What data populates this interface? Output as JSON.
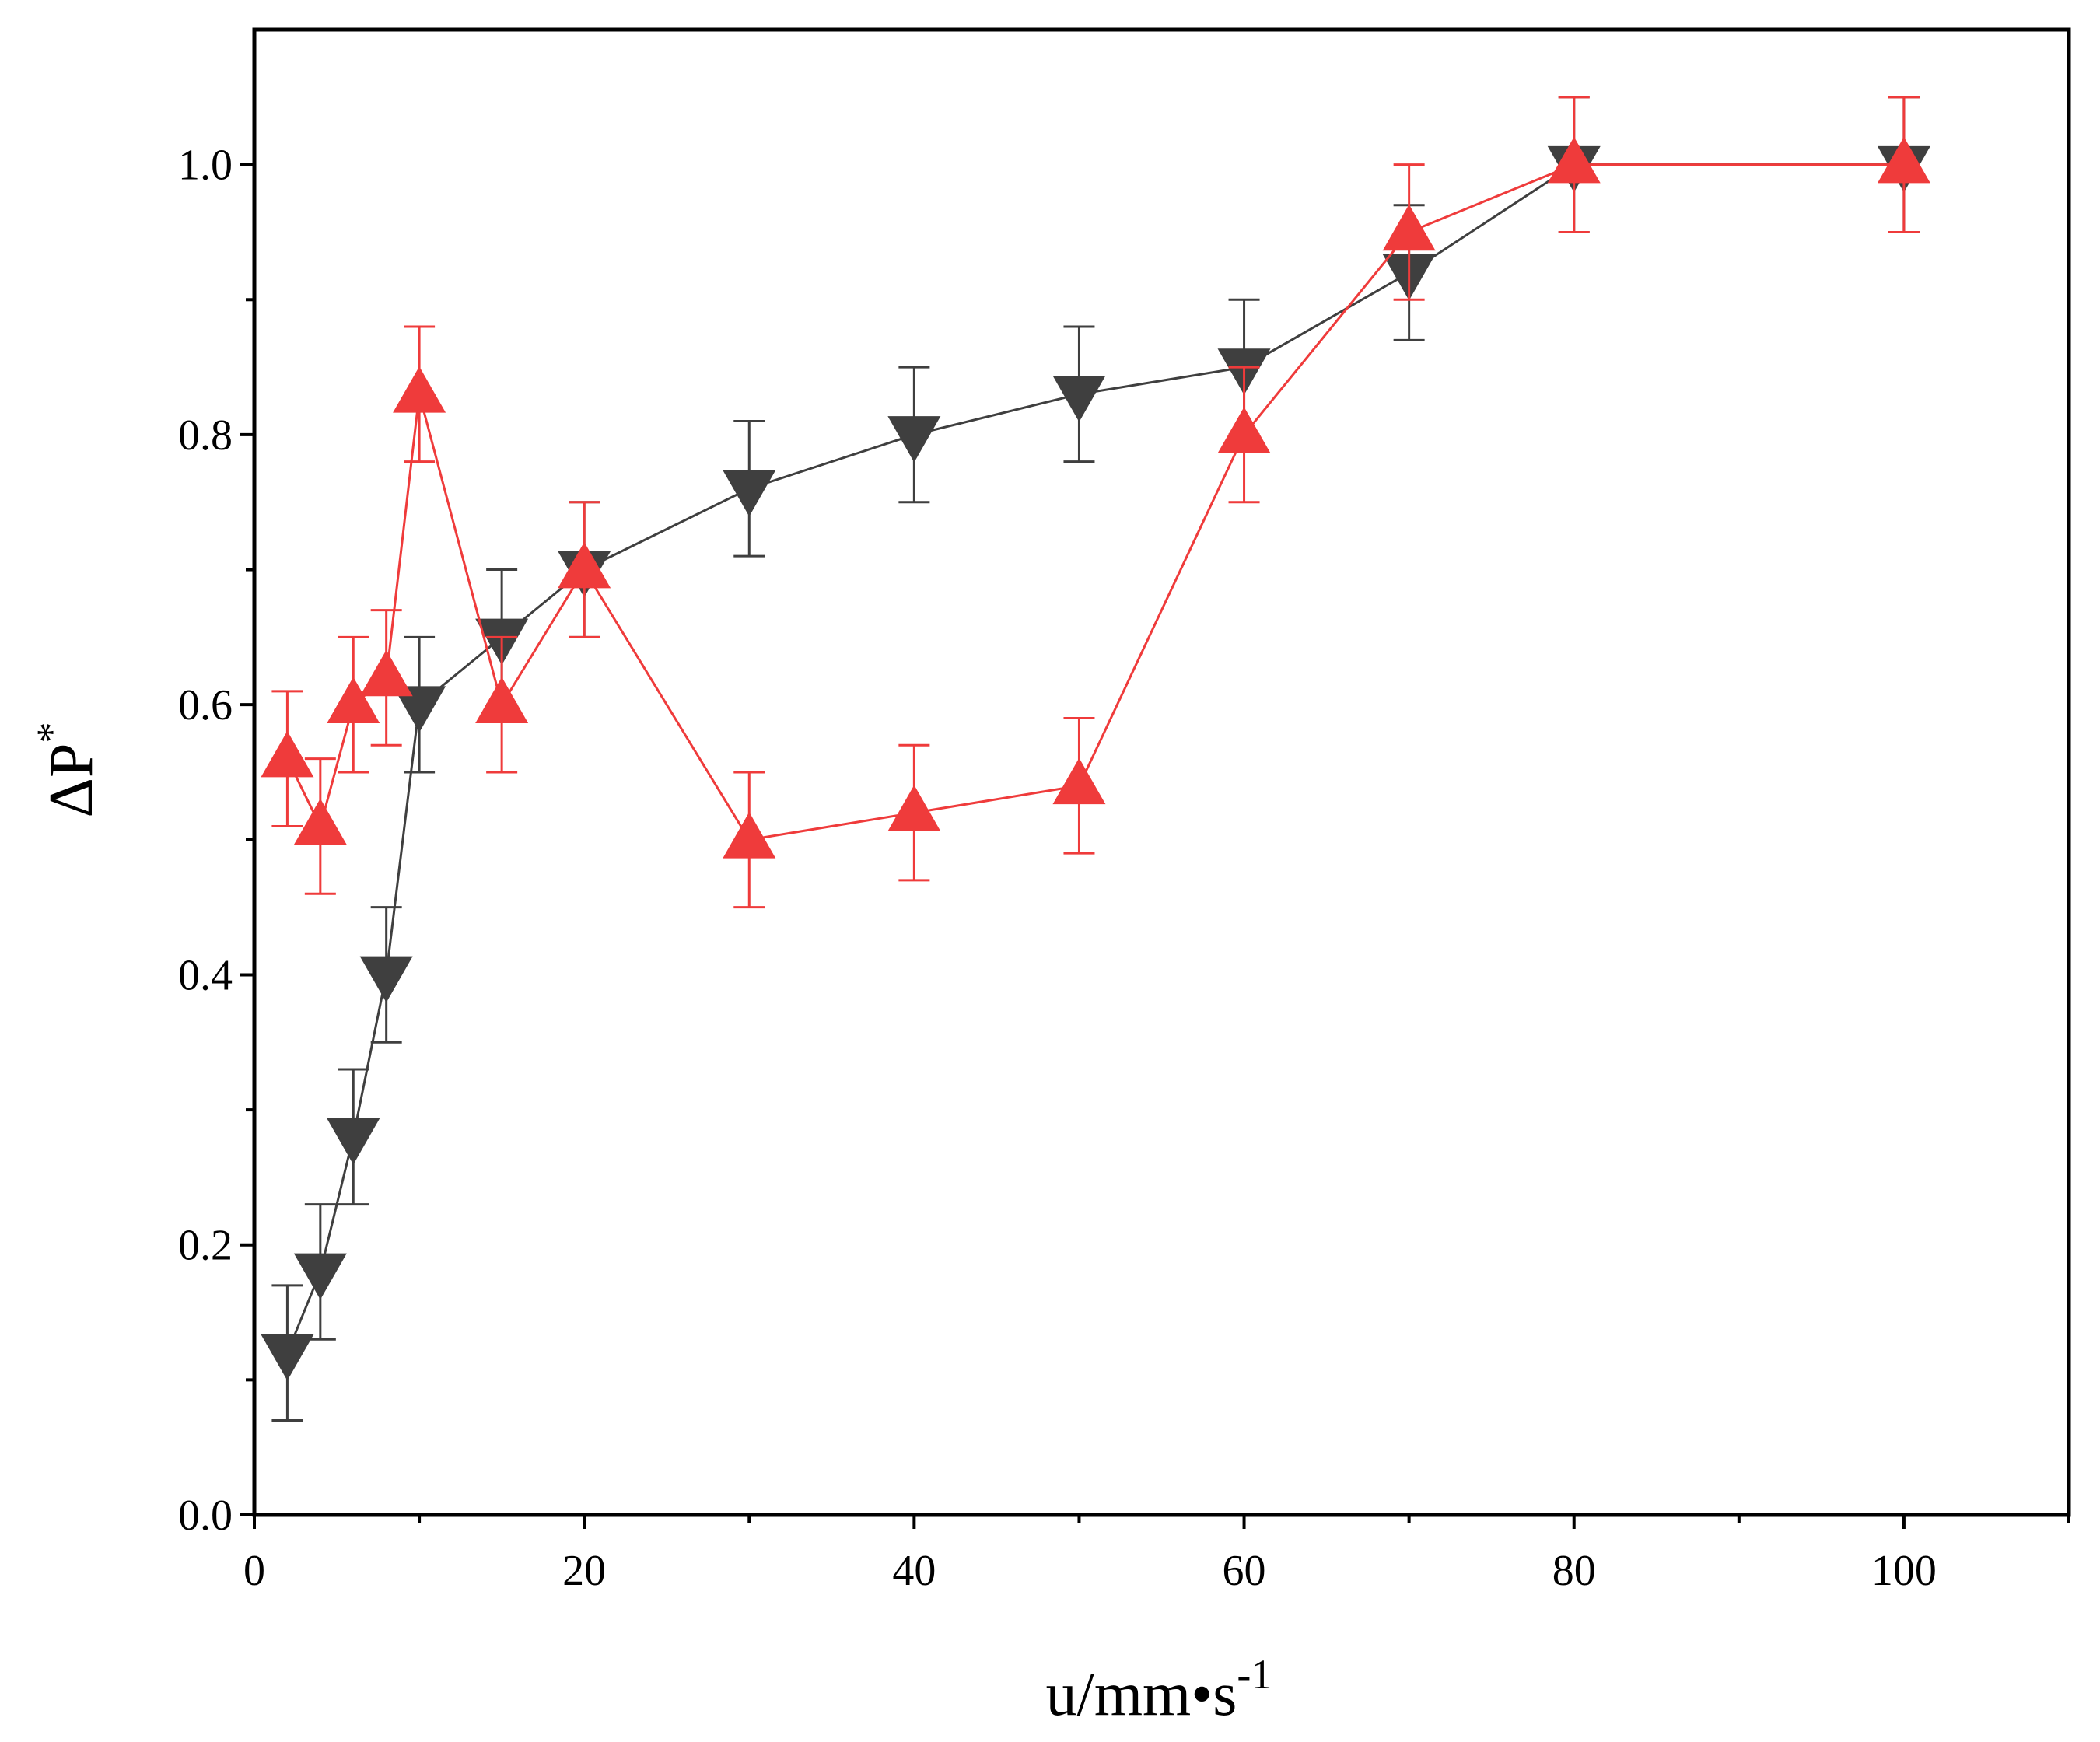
{
  "chart_data": {
    "type": "line",
    "title": "",
    "xlabel": {
      "base": "u/mm•s",
      "sup": "-1"
    },
    "ylabel": {
      "base": "ΔP",
      "sup": "*"
    },
    "xlim": [
      0,
      110
    ],
    "ylim": [
      0,
      1.1
    ],
    "x_ticks": [
      0,
      20,
      40,
      60,
      80,
      100
    ],
    "x_tick_labels": [
      "0",
      "20",
      "40",
      "60",
      "80",
      "100"
    ],
    "x_minor_ticks": [
      10,
      30,
      50,
      70,
      90,
      110
    ],
    "y_ticks": [
      0,
      0.2,
      0.4,
      0.6,
      0.8,
      1.0
    ],
    "y_tick_labels": [
      "0.0",
      "0.2",
      "0.4",
      "0.6",
      "0.8",
      "1.0"
    ],
    "y_minor_ticks": [
      0.1,
      0.3,
      0.5,
      0.7,
      0.9
    ],
    "grid": false,
    "series": [
      {
        "name": "series-gray",
        "color": "#3f3f3f",
        "marker": "triangle-down",
        "x": [
          2,
          4,
          6,
          8,
          10,
          15,
          20,
          30,
          40,
          50,
          60,
          70,
          80,
          100
        ],
        "y": [
          0.12,
          0.18,
          0.28,
          0.4,
          0.6,
          0.65,
          0.7,
          0.76,
          0.8,
          0.83,
          0.85,
          0.92,
          1.0,
          1.0
        ],
        "err": [
          0.05,
          0.05,
          0.05,
          0.05,
          0.05,
          0.05,
          0.05,
          0.05,
          0.05,
          0.05,
          0.05,
          0.05,
          0.05,
          0.05
        ]
      },
      {
        "name": "series-red",
        "color": "#ef3b3b",
        "marker": "triangle-up",
        "x": [
          2,
          4,
          6,
          8,
          10,
          15,
          20,
          30,
          40,
          50,
          60,
          70,
          80,
          100
        ],
        "y": [
          0.56,
          0.51,
          0.6,
          0.62,
          0.83,
          0.6,
          0.7,
          0.5,
          0.52,
          0.54,
          0.8,
          0.95,
          1.0,
          1.0
        ],
        "err": [
          0.05,
          0.05,
          0.05,
          0.05,
          0.05,
          0.05,
          0.05,
          0.05,
          0.05,
          0.05,
          0.05,
          0.05,
          0.05,
          0.05
        ]
      }
    ]
  }
}
